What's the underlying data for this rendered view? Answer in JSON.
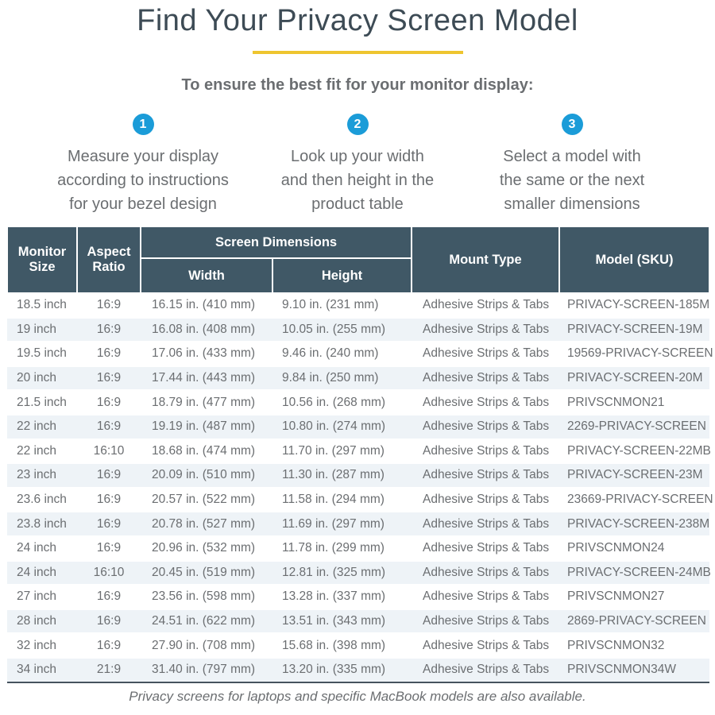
{
  "page": {
    "title": "Find Your Privacy Screen Model",
    "subtitle": "To ensure the best fit for your monitor display:",
    "footer_note": "Privacy screens for laptops and specific MacBook models are also available."
  },
  "colors": {
    "accent_blue": "#1b9cd8",
    "accent_yellow": "#eec52f",
    "table_header_bg": "#405866",
    "row_alt_bg": "#eef3f7",
    "title_text": "#3d4b55",
    "body_text": "#6b6e71"
  },
  "steps": [
    {
      "number": "1",
      "lines": [
        "Measure your display",
        "according to instructions",
        "for your bezel design"
      ]
    },
    {
      "number": "2",
      "lines": [
        "Look up your width",
        "and then height in the",
        "product table"
      ]
    },
    {
      "number": "3",
      "lines": [
        "Select a model with",
        "the same or the next",
        "smaller dimensions"
      ]
    }
  ],
  "table": {
    "headers": {
      "monitor_size": "Monitor Size",
      "aspect_ratio": "Aspect Ratio",
      "screen_dimensions": "Screen Dimensions",
      "width": "Width",
      "height": "Height",
      "mount_type": "Mount Type",
      "model_sku": "Model (SKU)"
    },
    "rows": [
      [
        "18.5 inch",
        "16:9",
        "16.15 in. (410 mm)",
        "9.10 in. (231 mm)",
        "Adhesive Strips & Tabs",
        "PRIVACY-SCREEN-185M"
      ],
      [
        "19 inch",
        "16:9",
        "16.08 in. (408 mm)",
        "10.05 in. (255 mm)",
        "Adhesive Strips & Tabs",
        "PRIVACY-SCREEN-19M"
      ],
      [
        "19.5 inch",
        "16:9",
        "17.06 in. (433 mm)",
        "9.46 in. (240 mm)",
        "Adhesive Strips & Tabs",
        "19569-PRIVACY-SCREEN"
      ],
      [
        "20 inch",
        "16:9",
        "17.44 in. (443 mm)",
        "9.84 in. (250 mm)",
        "Adhesive Strips & Tabs",
        "PRIVACY-SCREEN-20M"
      ],
      [
        "21.5 inch",
        "16:9",
        "18.79 in. (477 mm)",
        "10.56 in. (268 mm)",
        "Adhesive Strips & Tabs",
        "PRIVSCNMON21"
      ],
      [
        "22 inch",
        "16:9",
        "19.19 in. (487 mm)",
        "10.80 in. (274 mm)",
        "Adhesive Strips & Tabs",
        "2269-PRIVACY-SCREEN"
      ],
      [
        "22 inch",
        "16:10",
        "18.68 in. (474 mm)",
        "11.70 in. (297 mm)",
        "Adhesive Strips & Tabs",
        "PRIVACY-SCREEN-22MB"
      ],
      [
        "23 inch",
        "16:9",
        "20.09 in. (510 mm)",
        "11.30 in. (287 mm)",
        "Adhesive Strips & Tabs",
        "PRIVACY-SCREEN-23M"
      ],
      [
        "23.6 inch",
        "16:9",
        "20.57 in. (522 mm)",
        "11.58 in. (294 mm)",
        "Adhesive Strips & Tabs",
        "23669-PRIVACY-SCREEN"
      ],
      [
        "23.8 inch",
        "16:9",
        "20.78 in. (527 mm)",
        "11.69 in. (297 mm)",
        "Adhesive Strips & Tabs",
        "PRIVACY-SCREEN-238M"
      ],
      [
        "24 inch",
        "16:9",
        "20.96 in. (532 mm)",
        "11.78 in. (299 mm)",
        "Adhesive Strips & Tabs",
        "PRIVSCNMON24"
      ],
      [
        "24 inch",
        "16:10",
        "20.45 in. (519 mm)",
        "12.81 in. (325 mm)",
        "Adhesive Strips & Tabs",
        "PRIVACY-SCREEN-24MB"
      ],
      [
        "27 inch",
        "16:9",
        "23.56 in. (598 mm)",
        "13.28 in. (337 mm)",
        "Adhesive Strips & Tabs",
        "PRIVSCNMON27"
      ],
      [
        "28 inch",
        "16:9",
        "24.51 in. (622 mm)",
        "13.51 in. (343 mm)",
        "Adhesive Strips & Tabs",
        "2869-PRIVACY-SCREEN"
      ],
      [
        "32 inch",
        "16:9",
        "27.90 in. (708 mm)",
        "15.68 in. (398 mm)",
        "Adhesive Strips & Tabs",
        "PRIVSCNMON32"
      ],
      [
        "34 inch",
        "21:9",
        "31.40 in. (797 mm)",
        "13.20 in. (335 mm)",
        "Adhesive Strips & Tabs",
        "PRIVSCNMON34W"
      ]
    ]
  }
}
